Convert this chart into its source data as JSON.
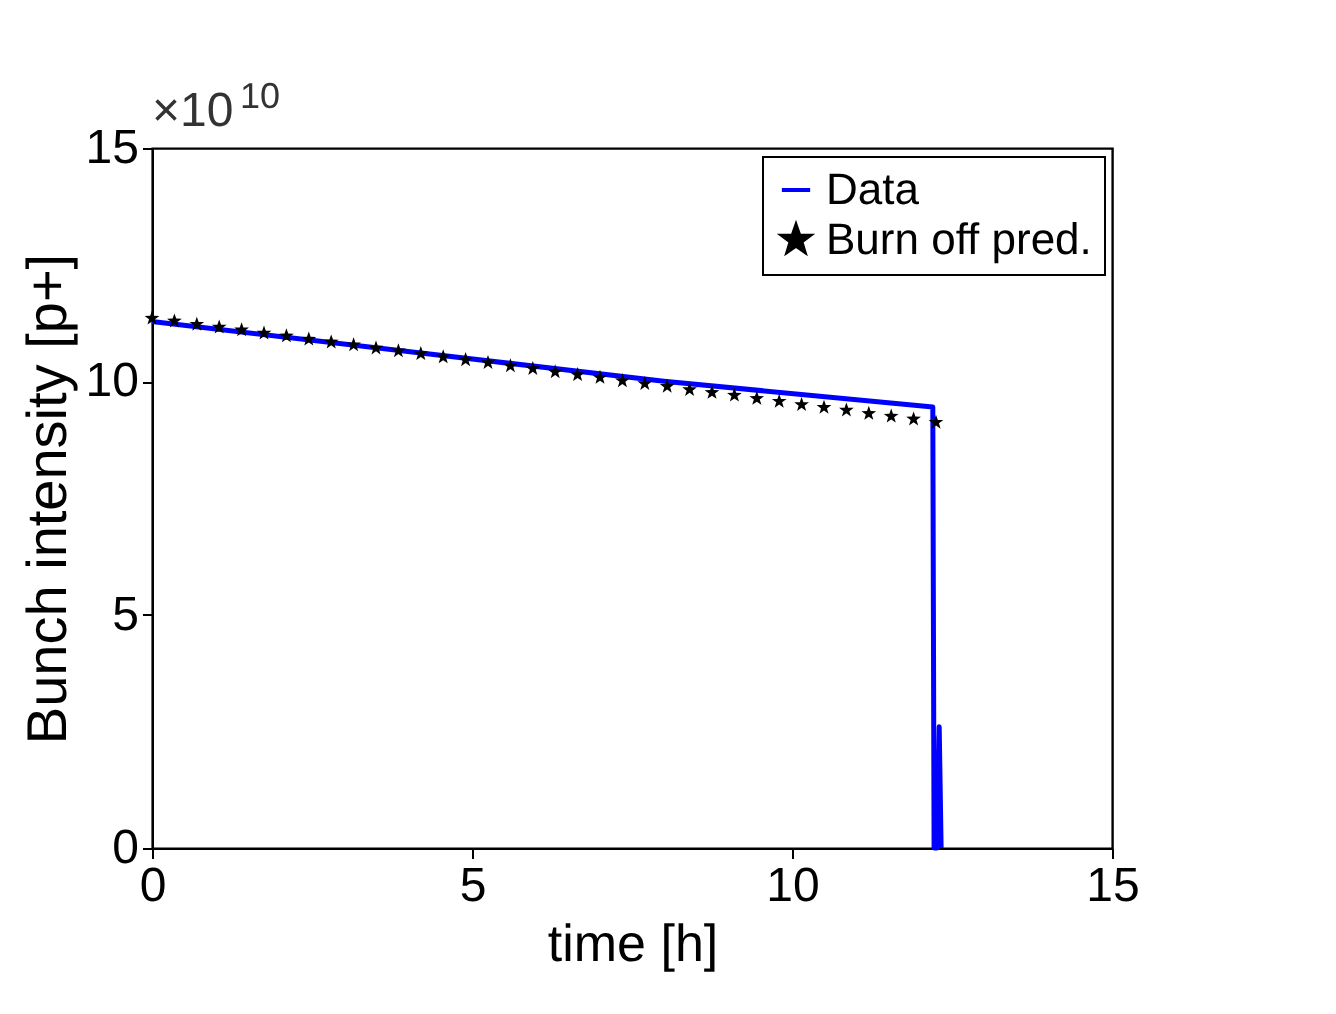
{
  "chart_data": {
    "type": "line",
    "xlabel": "time [h]",
    "ylabel": "Bunch intensity [p+]",
    "annotations": [
      "×10$^{10}$"
    ],
    "xlim": [
      0,
      15
    ],
    "ylim": [
      0,
      15
    ],
    "xticks": [
      0,
      5,
      10,
      15
    ],
    "yticks": [
      0,
      5,
      10,
      15
    ],
    "grid": false,
    "legend": "top right",
    "series": [
      {
        "name": "Data",
        "color": "#0000ff",
        "marker": "none",
        "x": [
          0,
          4,
          8,
          12.2,
          12.22,
          12.27,
          12.3,
          12.33
        ],
        "values": [
          11.28,
          10.64,
          10.0,
          9.45,
          0,
          0,
          2.6,
          0
        ]
      },
      {
        "name": "Burn off pred.",
        "color": "#000000",
        "type": "scatter",
        "marker": "star",
        "x": [
          0,
          0.35,
          0.7,
          1.05,
          1.4,
          1.75,
          2.1,
          2.45,
          2.8,
          3.15,
          3.5,
          3.85,
          4.2,
          4.55,
          4.9,
          5.25,
          5.6,
          5.95,
          6.3,
          6.65,
          7.0,
          7.35,
          7.7,
          8.05,
          8.4,
          8.75,
          9.1,
          9.45,
          9.8,
          10.15,
          10.5,
          10.85,
          11.2,
          11.55,
          11.9,
          12.25
        ],
        "values": [
          11.35,
          11.29,
          11.22,
          11.16,
          11.1,
          11.03,
          10.97,
          10.9,
          10.84,
          10.78,
          10.71,
          10.65,
          10.59,
          10.52,
          10.46,
          10.4,
          10.33,
          10.27,
          10.2,
          10.14,
          10.08,
          10.01,
          9.95,
          9.89,
          9.82,
          9.76,
          9.7,
          9.63,
          9.57,
          9.5,
          9.44,
          9.38,
          9.31,
          9.25,
          9.19,
          9.12
        ]
      }
    ]
  }
}
